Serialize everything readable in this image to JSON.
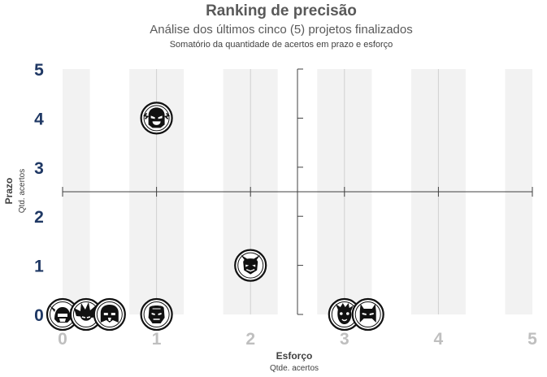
{
  "chart_data": {
    "type": "scatter",
    "title": "Ranking de precisão",
    "subtitle": "Análise dos últimos cinco (5) projetos finalizados",
    "note": "Somatório da quantidade de acertos em prazo e esforço",
    "xlabel": "Esforço",
    "xlabel_sub": "Qtde. acertos",
    "ylabel": "Prazo",
    "ylabel_sub": "Qtd. acertos",
    "xlim": [
      0,
      5
    ],
    "ylim": [
      0,
      5
    ],
    "x_ticks": [
      "0",
      "1",
      "2",
      "3",
      "4",
      "5"
    ],
    "y_ticks": [
      "0",
      "1",
      "2",
      "3",
      "4",
      "5"
    ],
    "quadrant_lines": {
      "x": 2.5,
      "y": 2.5
    },
    "points": [
      {
        "x": 0,
        "y": 0,
        "icon": "thor-helmet-icon"
      },
      {
        "x": 0.25,
        "y": 0,
        "icon": "spiky-hair-hero-icon"
      },
      {
        "x": 0.5,
        "y": 0,
        "icon": "dark-helmet-icon"
      },
      {
        "x": 1,
        "y": 0,
        "icon": "iron-mask-icon"
      },
      {
        "x": 1,
        "y": 4,
        "icon": "speedster-mask-icon"
      },
      {
        "x": 2,
        "y": 1,
        "icon": "horned-villain-icon"
      },
      {
        "x": 3,
        "y": 0,
        "icon": "tree-creature-icon"
      },
      {
        "x": 3.25,
        "y": 0,
        "icon": "bat-cowl-icon"
      }
    ]
  }
}
